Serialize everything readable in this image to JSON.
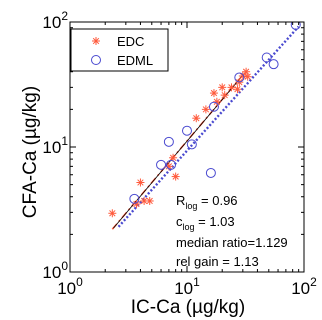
{
  "chart_data": {
    "type": "scatter",
    "xlabel": "IC-Ca (µg/kg)",
    "ylabel": "CFA-Ca (µg/kg)",
    "xlim": [
      1,
      100
    ],
    "ylim": [
      1,
      100
    ],
    "xscale": "log",
    "yscale": "log",
    "x_ticks": [
      {
        "base": "10",
        "exp": "0"
      },
      {
        "base": "10",
        "exp": "1"
      },
      {
        "base": "10",
        "exp": "2"
      }
    ],
    "y_ticks": [
      {
        "base": "10",
        "exp": "0"
      },
      {
        "base": "10",
        "exp": "1"
      },
      {
        "base": "10",
        "exp": "2"
      }
    ],
    "legend_position": "top-left",
    "series": [
      {
        "name": "EDC",
        "marker": "asterisk",
        "color": "#ff5a3c",
        "points": [
          [
            2.3,
            2.95
          ],
          [
            3.7,
            3.5
          ],
          [
            4.0,
            5.2
          ],
          [
            4.3,
            3.7
          ],
          [
            4.8,
            3.7
          ],
          [
            7.0,
            7.0
          ],
          [
            7.6,
            8.2
          ],
          [
            8.0,
            5.8
          ],
          [
            12.0,
            17.0
          ],
          [
            14.5,
            20.0
          ],
          [
            17.0,
            27.0
          ],
          [
            18.0,
            23.0
          ],
          [
            20.0,
            30.0
          ],
          [
            21.0,
            26.0
          ],
          [
            24.0,
            30.0
          ],
          [
            27.0,
            29.0
          ],
          [
            28.0,
            33.0
          ],
          [
            30.0,
            37.0
          ],
          [
            32.0,
            40.0
          ],
          [
            33.0,
            36.5
          ]
        ],
        "fit": {
          "start": [
            2.3,
            2.2
          ],
          "end": [
            31.0,
            39.0
          ]
        }
      },
      {
        "name": "EDML",
        "marker": "circle",
        "color": "#4a4ad0",
        "points": [
          [
            3.55,
            3.85
          ],
          [
            6.0,
            7.2
          ],
          [
            7.0,
            11.0
          ],
          [
            7.3,
            7.2
          ],
          [
            10.0,
            13.5
          ],
          [
            11.0,
            10.5
          ],
          [
            16.0,
            6.2
          ],
          [
            17.0,
            21.0
          ],
          [
            28.0,
            36.0
          ],
          [
            48.0,
            52.0
          ],
          [
            55.0,
            46.0
          ],
          [
            85.0,
            95.0
          ]
        ],
        "fit": {
          "start": [
            2.6,
            2.3
          ],
          "end": [
            90.0,
            92.0
          ]
        }
      }
    ],
    "annotations": {
      "r_main": "R",
      "r_sub": "log",
      "r_value": " = 0.96",
      "c_main": "c",
      "c_sub": "log",
      "c_value": " = 1.03",
      "median_ratio": "median ratio=1.129",
      "rel_gain": "rel gain = 1.13"
    }
  }
}
